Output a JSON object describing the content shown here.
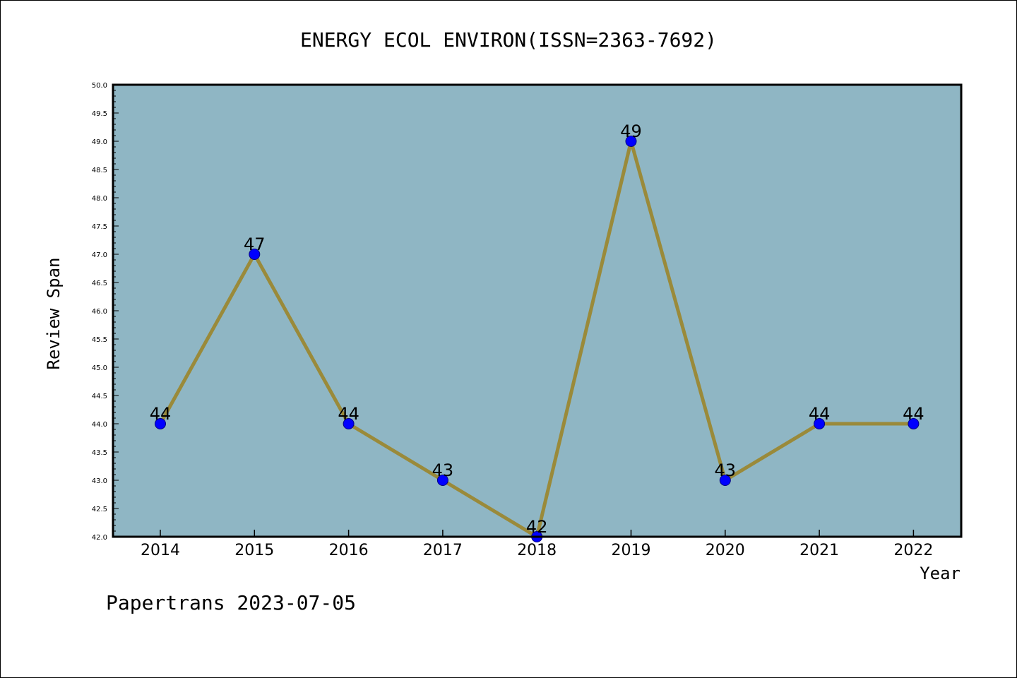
{
  "colors": {
    "plot_background": "#8fb6c4",
    "line": "#9a8a3a",
    "marker": "#0000ff",
    "marker_edge": "#000080",
    "axis": "#000000"
  },
  "footer": {
    "text": "Papertrans 2023-07-05"
  },
  "chart_data": {
    "type": "line",
    "title": "ENERGY ECOL ENVIRON(ISSN=2363-7692)",
    "xlabel": "Year",
    "ylabel": "Review Span",
    "categories": [
      "2014",
      "2015",
      "2016",
      "2017",
      "2018",
      "2019",
      "2020",
      "2021",
      "2022"
    ],
    "series": [
      {
        "values": [
          44,
          47,
          44,
          43,
          42,
          49,
          43,
          44,
          44
        ]
      }
    ],
    "data_labels": [
      "44",
      "47",
      "44",
      "43",
      "42",
      "49",
      "43",
      "44",
      "44"
    ],
    "ylim": [
      42.0,
      50.0
    ],
    "yticks": [
      "42.0",
      "42.5",
      "43.0",
      "43.5",
      "44.0",
      "44.5",
      "45.0",
      "45.5",
      "46.0",
      "46.5",
      "47.0",
      "47.5",
      "48.0",
      "48.5",
      "49.0",
      "49.5",
      "50.0"
    ],
    "grid": false,
    "legend": "none"
  }
}
